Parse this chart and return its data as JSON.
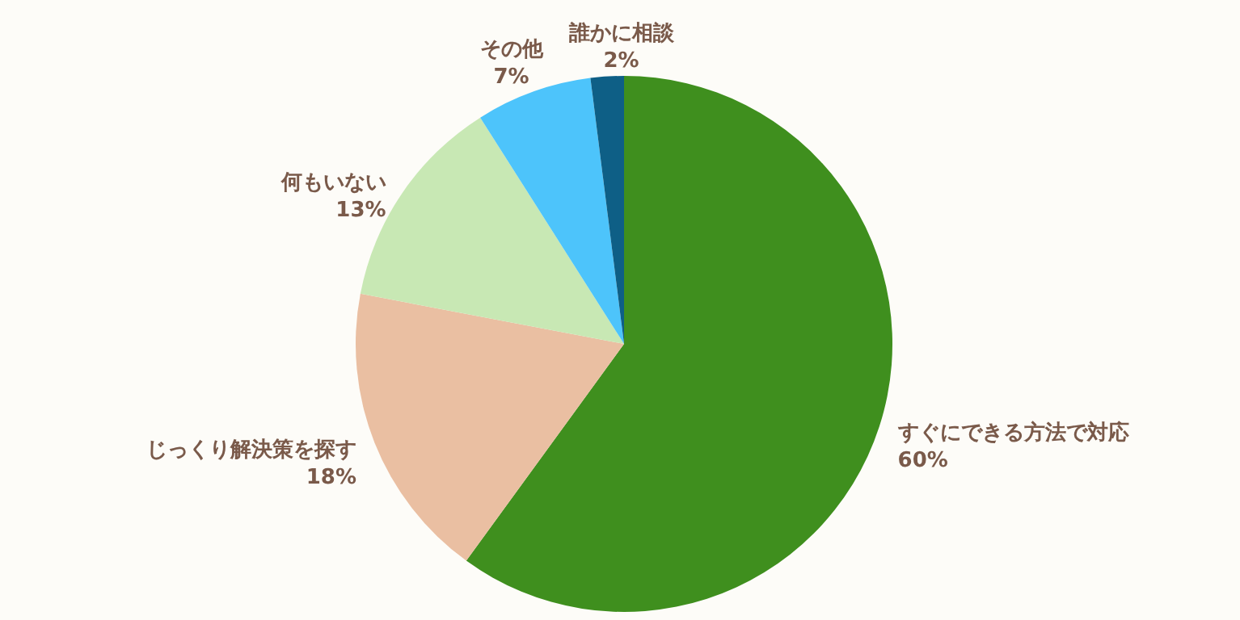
{
  "chart_data": {
    "type": "pie",
    "categories": [
      "すぐにできる方法で対応",
      "じっくり解決策を探す",
      "何もいない",
      "その他",
      "誰かに相談"
    ],
    "values": [
      60,
      18,
      13,
      7,
      2
    ],
    "colors": [
      "#3f8f1e",
      "#eabfa2",
      "#c8e8b4",
      "#4dc4fb",
      "#0e5f86"
    ],
    "value_labels": [
      "60%",
      "18%",
      "13%",
      "7%",
      "2%"
    ]
  }
}
